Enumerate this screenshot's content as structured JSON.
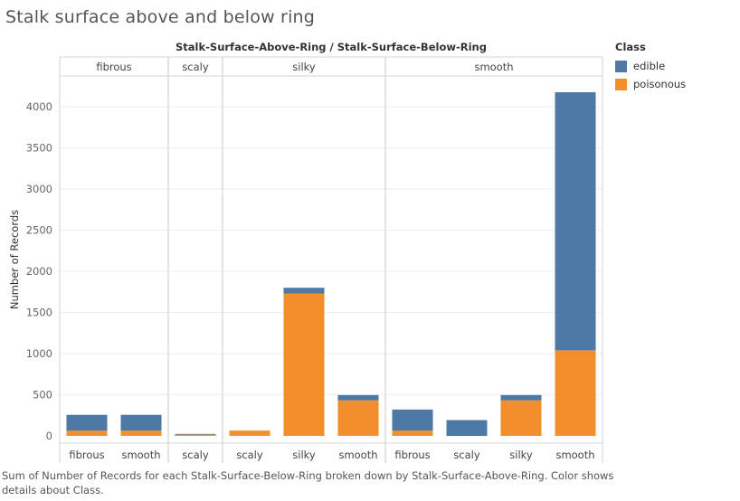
{
  "title": "Stalk surface above and below ring",
  "chart_data": {
    "type": "bar",
    "stacked": true,
    "header": "Stalk-Surface-Above-Ring / Stalk-Surface-Below-Ring",
    "ylabel": "Number of Records",
    "ylim": [
      0,
      4300
    ],
    "yticks": [
      0,
      500,
      1000,
      1500,
      2000,
      2500,
      3000,
      3500,
      4000
    ],
    "grid": true,
    "groups": [
      {
        "label": "fibrous",
        "bars": [
          {
            "category": "fibrous",
            "edible": 192,
            "poisonous": 64
          },
          {
            "category": "smooth",
            "edible": 192,
            "poisonous": 64
          }
        ]
      },
      {
        "label": "scaly",
        "bars": [
          {
            "category": "scaly",
            "edible": 8,
            "poisonous": 16
          }
        ]
      },
      {
        "label": "silky",
        "bars": [
          {
            "category": "scaly",
            "edible": 0,
            "poisonous": 64
          },
          {
            "category": "silky",
            "edible": 72,
            "poisonous": 1728
          },
          {
            "category": "smooth",
            "edible": 64,
            "poisonous": 432
          }
        ]
      },
      {
        "label": "smooth",
        "bars": [
          {
            "category": "fibrous",
            "edible": 256,
            "poisonous": 64
          },
          {
            "category": "scaly",
            "edible": 192,
            "poisonous": 0
          },
          {
            "category": "silky",
            "edible": 64,
            "poisonous": 432
          },
          {
            "category": "smooth",
            "edible": 3136,
            "poisonous": 1040
          }
        ]
      }
    ],
    "legend": {
      "title": "Class",
      "position": "top-right",
      "items": [
        {
          "name": "edible",
          "color": "#4e79a7"
        },
        {
          "name": "poisonous",
          "color": "#f28e2b"
        }
      ]
    }
  },
  "caption": "Sum of Number of Records for each Stalk-Surface-Below-Ring broken down by Stalk-Surface-Above-Ring.  Color shows details about Class."
}
